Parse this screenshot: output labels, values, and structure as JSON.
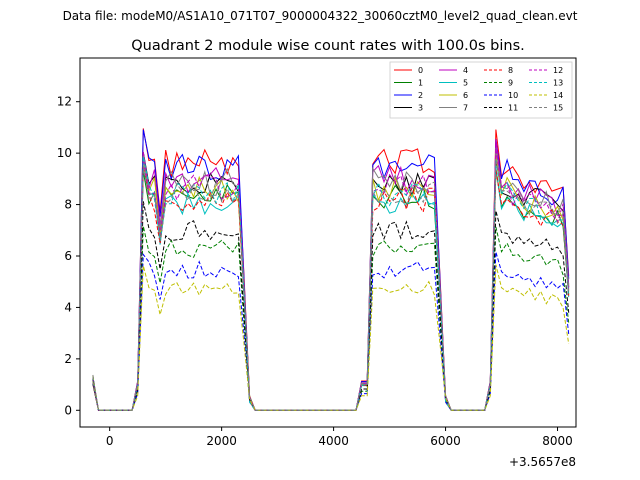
{
  "header": {
    "data_file": "Data file: modeM0/AS1A10_071T07_9000004322_30060cztM0_level2_quad_clean.evt"
  },
  "chart_data": {
    "type": "line",
    "title": "Quadrant 2 module wise count rates with 100.0s bins.",
    "xlabel": "",
    "ylabel": "",
    "x_offset_label": "+3.5657e8",
    "xlim": [
      -530,
      8330
    ],
    "ylim": [
      -0.65,
      13.7
    ],
    "xticks": [
      0,
      2000,
      4000,
      6000,
      8000
    ],
    "xtick_labels": [
      "0",
      "2000",
      "4000",
      "6000",
      "8000"
    ],
    "yticks": [
      0,
      2,
      4,
      6,
      8,
      10,
      12
    ],
    "ytick_labels": [
      "0",
      "2",
      "4",
      "6",
      "8",
      "10",
      "12"
    ],
    "grid": false,
    "legend_position": "top-right",
    "on_intervals": [
      [
        600,
        2300
      ],
      [
        4650,
        5800
      ],
      [
        6900,
        8150
      ]
    ],
    "series": [
      {
        "name": "0",
        "color": "#ff0000",
        "dash": "solid",
        "level": 9.5
      },
      {
        "name": "1",
        "color": "#008000",
        "dash": "solid",
        "level": 8.2
      },
      {
        "name": "2",
        "color": "#0000ff",
        "dash": "solid",
        "level": 9.3
      },
      {
        "name": "3",
        "color": "#000000",
        "dash": "solid",
        "level": 8.7
      },
      {
        "name": "4",
        "color": "#bf00bf",
        "dash": "solid",
        "level": 8.9
      },
      {
        "name": "5",
        "color": "#00bfbf",
        "dash": "solid",
        "level": 8.0
      },
      {
        "name": "6",
        "color": "#bfbf00",
        "dash": "solid",
        "level": 8.5
      },
      {
        "name": "7",
        "color": "#808080",
        "dash": "solid",
        "level": 8.8
      },
      {
        "name": "8",
        "color": "#ff0000",
        "dash": "dashed",
        "level": 8.1
      },
      {
        "name": "9",
        "color": "#008000",
        "dash": "dashed",
        "level": 6.2
      },
      {
        "name": "10",
        "color": "#0000ff",
        "dash": "dashed",
        "level": 5.4
      },
      {
        "name": "11",
        "color": "#000000",
        "dash": "dashed",
        "level": 6.9
      },
      {
        "name": "12",
        "color": "#bf00bf",
        "dash": "dashed",
        "level": 8.6
      },
      {
        "name": "13",
        "color": "#00bfbf",
        "dash": "dashed",
        "level": 8.3
      },
      {
        "name": "14",
        "color": "#bfbf00",
        "dash": "dashed",
        "level": 4.7
      },
      {
        "name": "15",
        "color": "#808080",
        "dash": "dashed",
        "level": 8.4
      }
    ]
  }
}
